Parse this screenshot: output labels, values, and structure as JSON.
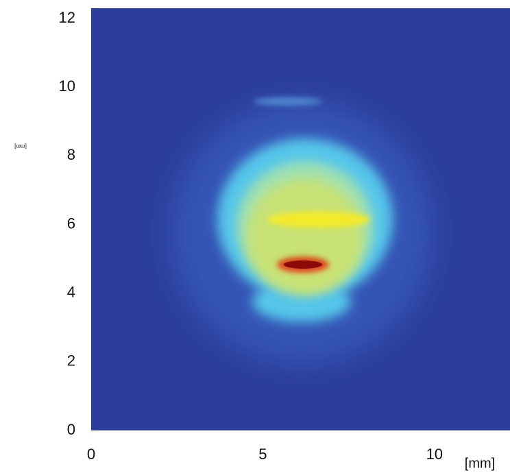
{
  "chart_data": {
    "type": "heatmap",
    "x_label": "[mm]",
    "y_label": "[mm]",
    "xlim": [
      0,
      12.2
    ],
    "ylim": [
      0,
      12.3
    ],
    "xticks": [
      0,
      5,
      10
    ],
    "yticks": [
      0,
      2,
      4,
      6,
      8,
      10,
      12
    ]
  }
}
